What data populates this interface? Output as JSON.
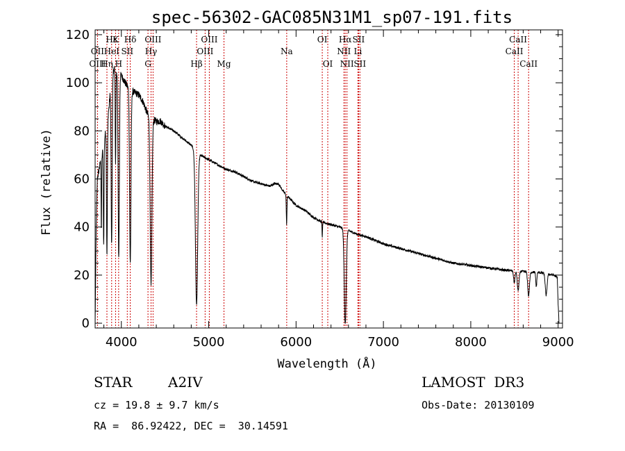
{
  "chart_data": {
    "type": "line",
    "title": "spec-56302-GAC085N31M1_sp07-191.fits",
    "xlabel": "Wavelength (Å)",
    "ylabel": "Flux (relative)",
    "xlim": [
      3700,
      9050
    ],
    "ylim": [
      -2,
      122
    ],
    "xticks": [
      4000,
      5000,
      6000,
      7000,
      8000,
      9000
    ],
    "yticks": [
      0,
      20,
      40,
      60,
      80,
      100,
      120
    ],
    "grid": false,
    "series": [
      {
        "name": "spectrum",
        "continuum": [
          [
            3700,
            0
          ],
          [
            3712,
            40
          ],
          [
            3725,
            60
          ],
          [
            3750,
            65
          ],
          [
            3780,
            70
          ],
          [
            3800,
            75
          ],
          [
            3830,
            82
          ],
          [
            3860,
            90
          ],
          [
            3880,
            100
          ],
          [
            3900,
            104
          ],
          [
            3920,
            106
          ],
          [
            3950,
            105
          ],
          [
            3980,
            104
          ],
          [
            4000,
            103
          ],
          [
            4030,
            101
          ],
          [
            4060,
            99
          ],
          [
            4100,
            97
          ],
          [
            4150,
            96
          ],
          [
            4200,
            95
          ],
          [
            4250,
            92
          ],
          [
            4300,
            87
          ],
          [
            4350,
            85
          ],
          [
            4400,
            84
          ],
          [
            4450,
            84
          ],
          [
            4500,
            82
          ],
          [
            4600,
            80
          ],
          [
            4700,
            77
          ],
          [
            4800,
            74
          ],
          [
            4850,
            72
          ],
          [
            4900,
            70
          ],
          [
            4950,
            69
          ],
          [
            5000,
            68
          ],
          [
            5100,
            66
          ],
          [
            5200,
            64
          ],
          [
            5300,
            63
          ],
          [
            5400,
            61
          ],
          [
            5500,
            59
          ],
          [
            5600,
            58
          ],
          [
            5700,
            57
          ],
          [
            5750,
            58
          ],
          [
            5800,
            58
          ],
          [
            5850,
            55
          ],
          [
            5900,
            53
          ],
          [
            5950,
            51
          ],
          [
            6000,
            49
          ],
          [
            6100,
            47
          ],
          [
            6200,
            44
          ],
          [
            6300,
            42
          ],
          [
            6400,
            41
          ],
          [
            6500,
            40
          ],
          [
            6600,
            38.5
          ],
          [
            6700,
            37
          ],
          [
            6800,
            36
          ],
          [
            7000,
            33
          ],
          [
            7200,
            31
          ],
          [
            7400,
            29
          ],
          [
            7600,
            27
          ],
          [
            7800,
            25
          ],
          [
            8000,
            24
          ],
          [
            8200,
            23
          ],
          [
            8400,
            22
          ],
          [
            8600,
            21.5
          ],
          [
            8800,
            21
          ],
          [
            8950,
            20
          ],
          [
            8990,
            19
          ],
          [
            9000,
            8
          ],
          [
            9010,
            0
          ]
        ],
        "absorption_lines": [
          {
            "center": 3771,
            "depth": 30,
            "width": 3
          },
          {
            "center": 3798,
            "depth": 42,
            "width": 4
          },
          {
            "center": 3835,
            "depth": 55,
            "width": 5
          },
          {
            "center": 3889,
            "depth": 70,
            "width": 6
          },
          {
            "center": 3934,
            "depth": 40,
            "width": 4
          },
          {
            "center": 3970,
            "depth": 77,
            "width": 7
          },
          {
            "center": 4102,
            "depth": 72,
            "width": 8
          },
          {
            "center": 4340,
            "depth": 70,
            "width": 10
          },
          {
            "center": 4861,
            "depth": 64,
            "width": 13
          },
          {
            "center": 5892,
            "depth": 12,
            "width": 4
          },
          {
            "center": 6300,
            "depth": 6,
            "width": 3
          },
          {
            "center": 6563,
            "depth": 40,
            "width": 11
          },
          {
            "center": 8498,
            "depth": 5,
            "width": 8
          },
          {
            "center": 8542,
            "depth": 8,
            "width": 10
          },
          {
            "center": 8662,
            "depth": 10,
            "width": 10
          },
          {
            "center": 8750,
            "depth": 6,
            "width": 6
          },
          {
            "center": 8863,
            "depth": 9,
            "width": 10
          }
        ],
        "noise_amplitude": 1.0
      }
    ],
    "line_markers": [
      {
        "label": "Hε",
        "wavelength": 3889,
        "row": 0
      },
      {
        "label": "K",
        "wavelength": 3934,
        "row": 0
      },
      {
        "label": "Hδ",
        "wavelength": 4102,
        "row": 0
      },
      {
        "label": "OIII",
        "wavelength": 4363,
        "row": 0
      },
      {
        "label": "OIII",
        "wavelength": 5007,
        "row": 0
      },
      {
        "label": "OI",
        "wavelength": 6300,
        "row": 0
      },
      {
        "label": "Hα",
        "wavelength": 6563,
        "row": 0
      },
      {
        "label": "SII",
        "wavelength": 6716,
        "row": 0
      },
      {
        "label": "CaII",
        "wavelength": 8542,
        "row": 0
      },
      {
        "label": "OII",
        "wavelength": 3727,
        "row": 1
      },
      {
        "label": "HeI",
        "wavelength": 3889,
        "row": 1
      },
      {
        "label": "SII",
        "wavelength": 4068,
        "row": 1
      },
      {
        "label": "Hγ",
        "wavelength": 4340,
        "row": 1
      },
      {
        "label": "OIII",
        "wavelength": 4959,
        "row": 1
      },
      {
        "label": "Na",
        "wavelength": 5893,
        "row": 1
      },
      {
        "label": "NII",
        "wavelength": 6548,
        "row": 1
      },
      {
        "label": "Li",
        "wavelength": 6708,
        "row": 1
      },
      {
        "label": "CaII",
        "wavelength": 8498,
        "row": 1
      },
      {
        "label": "OIII",
        "wavelength": 3727,
        "row": 2
      },
      {
        "label": "Hη",
        "wavelength": 3835,
        "row": 2
      },
      {
        "label": "H",
        "wavelength": 3969,
        "row": 2
      },
      {
        "label": "G",
        "wavelength": 4305,
        "row": 2
      },
      {
        "label": "Hβ",
        "wavelength": 4861,
        "row": 2
      },
      {
        "label": "Mg",
        "wavelength": 5175,
        "row": 2
      },
      {
        "label": "OI",
        "wavelength": 6363,
        "row": 2
      },
      {
        "label": "NII",
        "wavelength": 6583,
        "row": 2
      },
      {
        "label": "SII",
        "wavelength": 6731,
        "row": 2
      },
      {
        "label": "CaII",
        "wavelength": 8662,
        "row": 2
      }
    ],
    "marker_color": "#cc0000"
  },
  "info": {
    "object_class": "STAR",
    "subclass": "A2IV",
    "survey": "LAMOST  DR3",
    "redshift_line": "cz = 19.8 ± 9.7 km/s",
    "obs_date_line": "Obs-Date: 20130109",
    "coords_line": "RA =  86.92422, DEC =  30.14591"
  }
}
